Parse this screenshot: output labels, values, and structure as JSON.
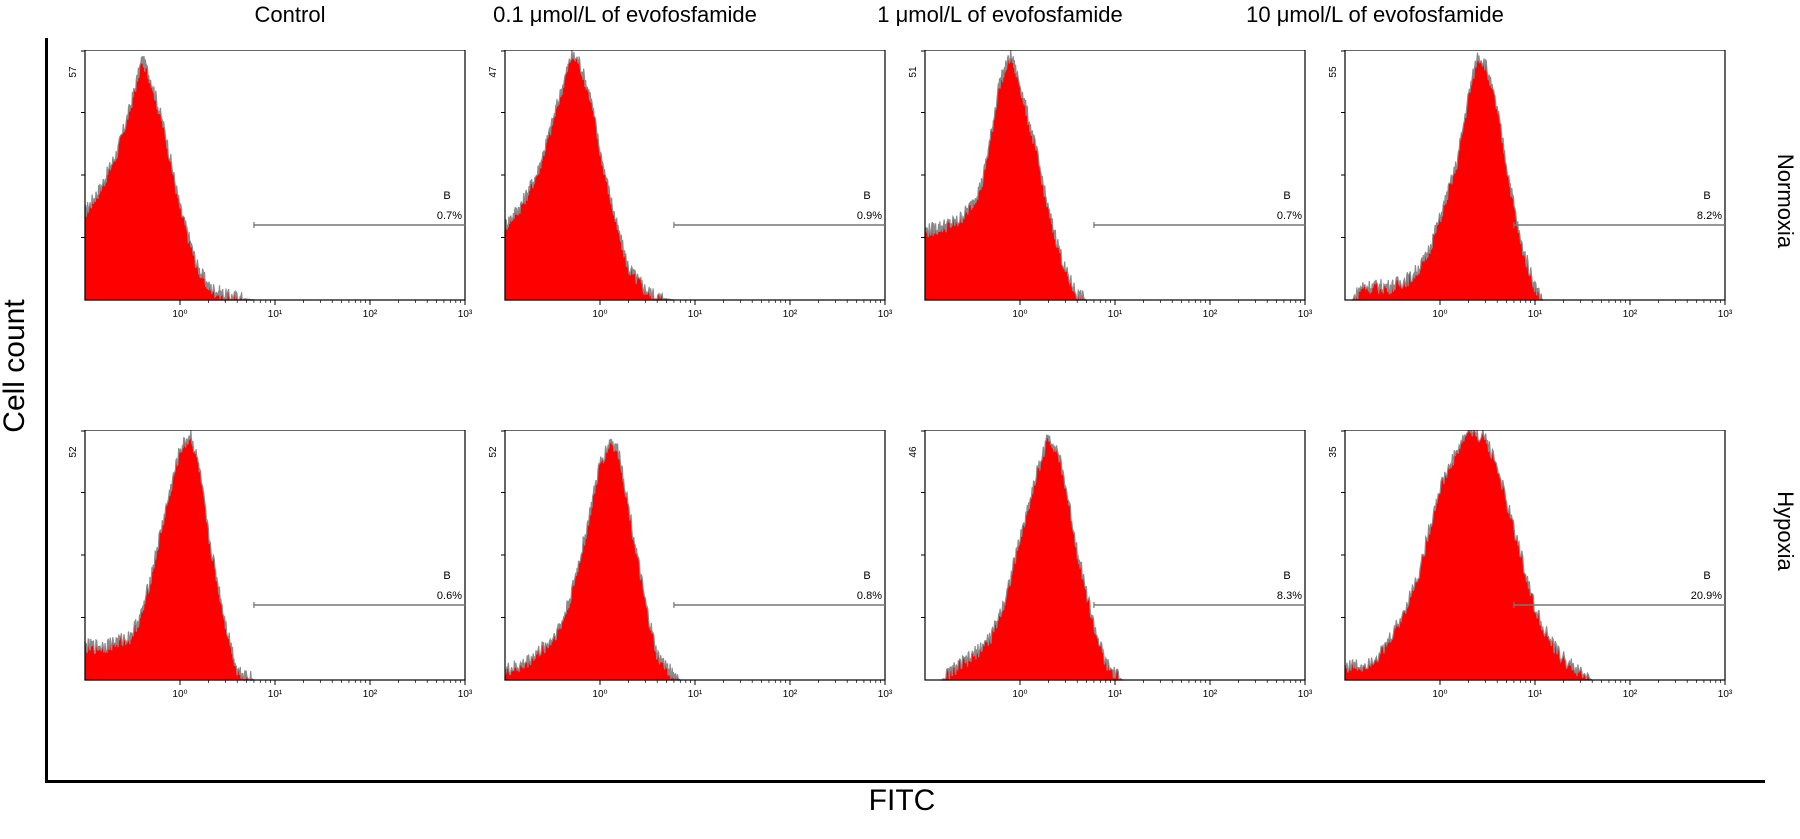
{
  "figure": {
    "y_title": "Cell count",
    "x_title": "FITC",
    "columns": [
      "Control",
      "0.1 μmol/L of evofosfamide",
      "1 μmol/L of evofosfamide",
      "10 μmol/L of evofosfamide"
    ],
    "rows": [
      "Normoxia",
      "Hypoxia"
    ],
    "colors": {
      "fill": "#ff0000",
      "outline": "#8a8a8a",
      "frame": "#000000",
      "gate": "#777777"
    }
  },
  "chart_data": [
    {
      "type": "area",
      "condition": "Normoxia",
      "treatment": "Control",
      "x_scale": "log",
      "xlim": [
        0.1,
        1000
      ],
      "x_ticks": [
        "10⁰",
        "10¹",
        "10²",
        "10³"
      ],
      "ylim": [
        0,
        57
      ],
      "y_max_label": "57",
      "histogram": {
        "x": [
          0.1,
          0.15,
          0.22,
          0.3,
          0.4,
          0.5,
          0.7,
          1,
          1.5,
          2,
          3,
          4,
          6
        ],
        "y": [
          20,
          26,
          34,
          44,
          55,
          50,
          38,
          21,
          8,
          3,
          1,
          0.5,
          0
        ]
      },
      "gate": {
        "label": "B",
        "percent": "0.7%",
        "x_range": [
          6,
          1000
        ]
      }
    },
    {
      "type": "area",
      "condition": "Normoxia",
      "treatment": "0.1 μmol/L of evofosfamide",
      "x_scale": "log",
      "xlim": [
        0.1,
        1000
      ],
      "x_ticks": [
        "10⁰",
        "10¹",
        "10²",
        "10³"
      ],
      "ylim": [
        0,
        47
      ],
      "y_max_label": "47",
      "histogram": {
        "x": [
          0.1,
          0.15,
          0.22,
          0.3,
          0.4,
          0.5,
          0.6,
          0.8,
          1,
          1.5,
          2,
          3,
          4,
          6
        ],
        "y": [
          14,
          18,
          24,
          32,
          40,
          46,
          45,
          38,
          28,
          14,
          6,
          2,
          0.5,
          0
        ]
      },
      "gate": {
        "label": "B",
        "percent": "0.9%",
        "x_range": [
          6,
          1000
        ]
      }
    },
    {
      "type": "area",
      "condition": "Normoxia",
      "treatment": "1 μmol/L of evofosfamide",
      "x_scale": "log",
      "xlim": [
        0.1,
        1000
      ],
      "x_ticks": [
        "10⁰",
        "10¹",
        "10²",
        "10³"
      ],
      "ylim": [
        0,
        51
      ],
      "y_max_label": "51",
      "histogram": {
        "x": [
          0.1,
          0.15,
          0.22,
          0.3,
          0.4,
          0.5,
          0.6,
          0.8,
          1,
          1.5,
          2,
          3,
          4,
          5
        ],
        "y": [
          14,
          15,
          16,
          19,
          24,
          34,
          44,
          50,
          44,
          30,
          18,
          6,
          1,
          0
        ]
      },
      "gate": {
        "label": "B",
        "percent": "0.7%",
        "x_range": [
          6,
          1000
        ]
      }
    },
    {
      "type": "area",
      "condition": "Normoxia",
      "treatment": "10 μmol/L of evofosfamide",
      "x_scale": "log",
      "xlim": [
        0.1,
        1000
      ],
      "x_ticks": [
        "10⁰",
        "10¹",
        "10²",
        "10³"
      ],
      "ylim": [
        0,
        55
      ],
      "y_max_label": "55",
      "histogram": {
        "x": [
          0.12,
          0.15,
          0.22,
          0.3,
          0.5,
          0.7,
          1,
          1.5,
          2,
          2.5,
          3,
          4,
          5,
          7,
          10,
          12
        ],
        "y": [
          0,
          3,
          3,
          3,
          5,
          9,
          18,
          30,
          45,
          54,
          52,
          42,
          30,
          13,
          3,
          0
        ]
      },
      "gate": {
        "label": "B",
        "percent": "8.2%",
        "x_range": [
          6,
          1000
        ]
      }
    },
    {
      "type": "area",
      "condition": "Hypoxia",
      "treatment": "Control",
      "x_scale": "log",
      "xlim": [
        0.1,
        1000
      ],
      "x_ticks": [
        "10⁰",
        "10¹",
        "10²",
        "10³"
      ],
      "ylim": [
        0,
        52
      ],
      "y_max_label": "52",
      "histogram": {
        "x": [
          0.1,
          0.15,
          0.22,
          0.3,
          0.4,
          0.5,
          0.7,
          1,
          1.3,
          1.6,
          2,
          3,
          4,
          6
        ],
        "y": [
          7,
          7,
          8,
          9,
          14,
          22,
          35,
          48,
          51,
          44,
          30,
          12,
          2,
          0
        ]
      },
      "gate": {
        "label": "B",
        "percent": "0.6%",
        "x_range": [
          6,
          1000
        ]
      }
    },
    {
      "type": "area",
      "condition": "Hypoxia",
      "treatment": "0.1 μmol/L of evofosfamide",
      "x_scale": "log",
      "xlim": [
        0.1,
        1000
      ],
      "x_ticks": [
        "10⁰",
        "10¹",
        "10²",
        "10³"
      ],
      "ylim": [
        0,
        52
      ],
      "y_max_label": "52",
      "histogram": {
        "x": [
          0.1,
          0.15,
          0.2,
          0.3,
          0.4,
          0.5,
          0.7,
          1,
          1.3,
          1.6,
          2,
          3,
          4,
          6,
          7
        ],
        "y": [
          2,
          3,
          5,
          8,
          12,
          18,
          30,
          45,
          50,
          47,
          36,
          16,
          5,
          1,
          0
        ]
      },
      "gate": {
        "label": "B",
        "percent": "0.8%",
        "x_range": [
          6,
          1000
        ]
      }
    },
    {
      "type": "area",
      "condition": "Hypoxia",
      "treatment": "1 μmol/L of evofosfamide",
      "x_scale": "log",
      "xlim": [
        0.1,
        1000
      ],
      "x_ticks": [
        "10⁰",
        "10¹",
        "10²",
        "10³"
      ],
      "ylim": [
        0,
        46
      ],
      "y_max_label": "46",
      "histogram": {
        "x": [
          0.15,
          0.2,
          0.3,
          0.5,
          0.7,
          1,
          1.5,
          2,
          2.5,
          3,
          4,
          6,
          8,
          10,
          12
        ],
        "y": [
          0,
          2,
          4,
          8,
          15,
          26,
          38,
          45,
          42,
          36,
          24,
          10,
          3,
          1,
          0
        ]
      },
      "gate": {
        "label": "B",
        "percent": "8.3%",
        "x_range": [
          6,
          1000
        ]
      }
    },
    {
      "type": "area",
      "condition": "Hypoxia",
      "treatment": "10 μmol/L of evofosfamide",
      "x_scale": "log",
      "xlim": [
        0.1,
        1000
      ],
      "x_ticks": [
        "10⁰",
        "10¹",
        "10²",
        "10³"
      ],
      "ylim": [
        0,
        35
      ],
      "y_max_label": "35",
      "histogram": {
        "x": [
          0.1,
          0.15,
          0.25,
          0.4,
          0.6,
          0.8,
          1,
          1.5,
          2,
          3,
          4,
          5,
          7,
          10,
          15,
          20,
          30,
          40
        ],
        "y": [
          2,
          2,
          4,
          9,
          15,
          22,
          27,
          32,
          35,
          34,
          30,
          25,
          18,
          10,
          5,
          3,
          1,
          0
        ]
      },
      "gate": {
        "label": "B",
        "percent": "20.9%",
        "x_range": [
          6,
          1000
        ]
      }
    }
  ]
}
